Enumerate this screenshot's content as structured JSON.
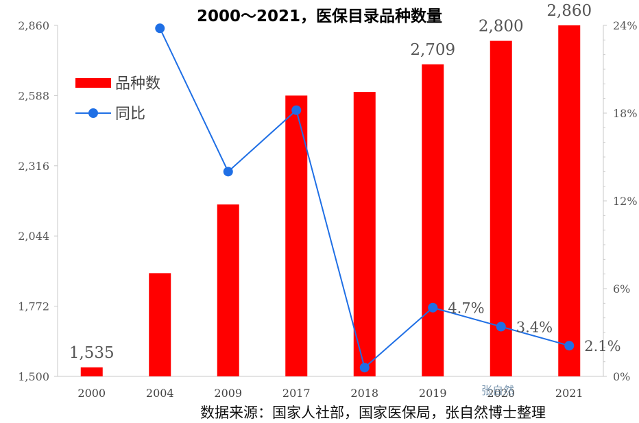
{
  "chart_data": {
    "type": "bar",
    "title": "2000～2021，医保目录品种数量",
    "categories": [
      "2000",
      "2004",
      "2009",
      "2017",
      "2018",
      "2019",
      "2020",
      "2021"
    ],
    "series": [
      {
        "name": "品种数",
        "type": "bar",
        "axis": "left",
        "color": "#ff0000",
        "values": [
          1535,
          1900,
          2166,
          2588,
          2602,
          2709,
          2800,
          2860
        ]
      },
      {
        "name": "同比",
        "type": "line",
        "axis": "right",
        "unit": "%",
        "color": "#1f6fe5",
        "values": [
          null,
          23.8,
          14.0,
          18.2,
          0.6,
          4.7,
          3.4,
          2.1
        ]
      }
    ],
    "bar_labels": [
      {
        "index": 0,
        "text": "1,535"
      },
      {
        "index": 5,
        "text": "2,709"
      },
      {
        "index": 6,
        "text": "2,800"
      },
      {
        "index": 7,
        "text": "2,860"
      }
    ],
    "line_labels": [
      {
        "index": 5,
        "text": "4.7%"
      },
      {
        "index": 6,
        "text": "3.4%"
      },
      {
        "index": 7,
        "text": "2.1%"
      }
    ],
    "left_axis": {
      "ylim": [
        1500,
        2860
      ],
      "ticks": [
        "1,500",
        "1,772",
        "2,044",
        "2,316",
        "2,588",
        "2,860"
      ]
    },
    "right_axis": {
      "ylim": [
        0,
        24
      ],
      "ticks": [
        "0%",
        "6%",
        "12%",
        "18%",
        "24%"
      ]
    },
    "legend_position": "top-left",
    "grid": false,
    "source": "数据来源：国家人社部，国家医保局，张自然博士整理",
    "watermark": "张自然"
  }
}
